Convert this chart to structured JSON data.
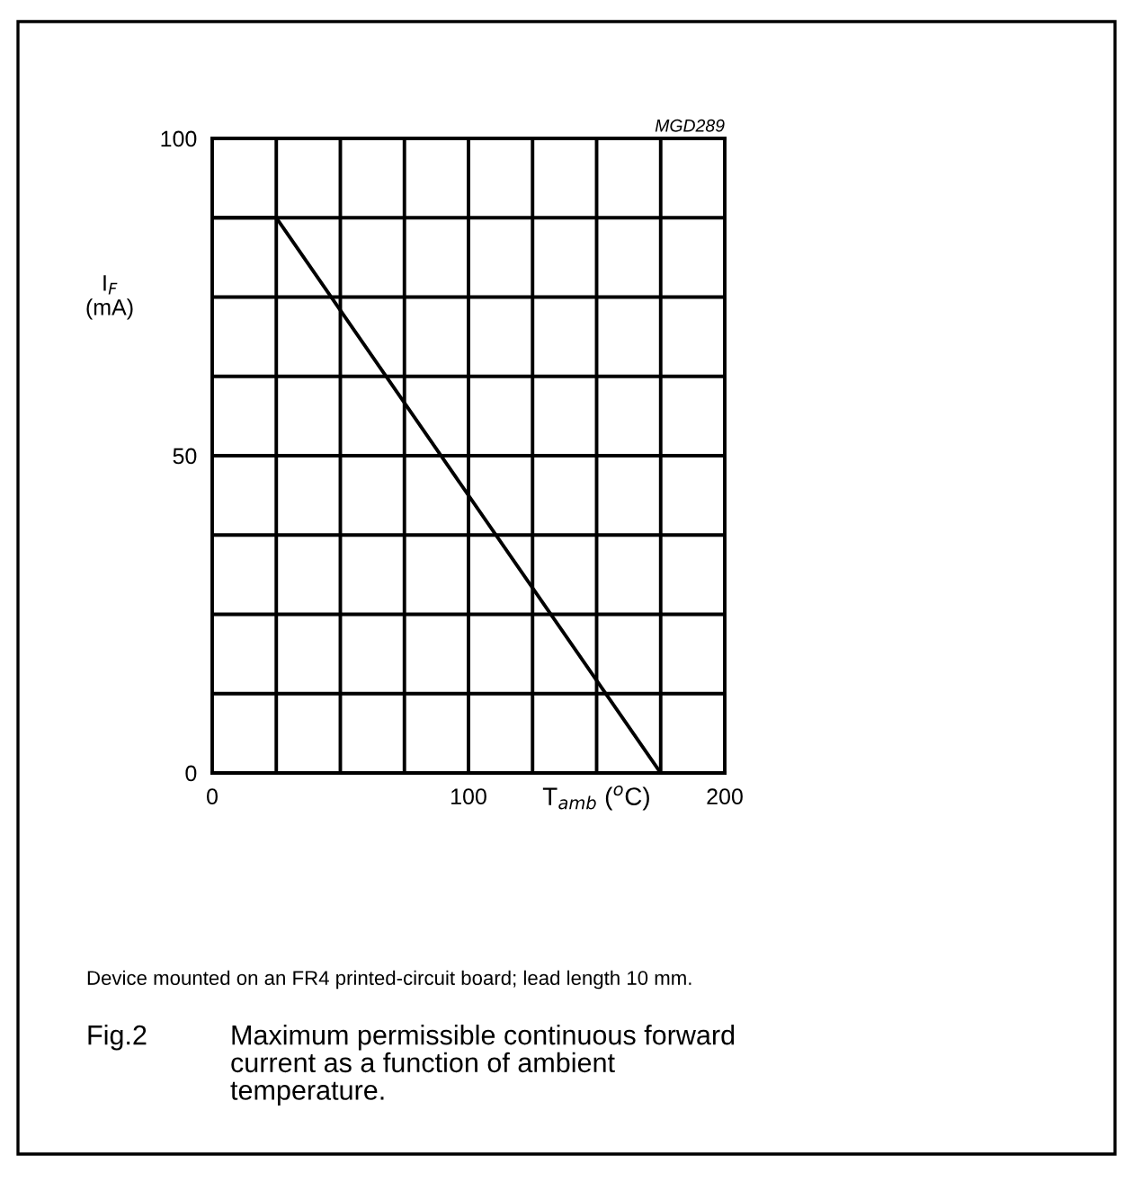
{
  "chart_data": {
    "type": "line",
    "title": "Maximum permissible continuous forward\ncurrent as a function of ambient\ntemperature.",
    "xlabel": "T$_{amb}$ ($^{o}$C)",
    "ylabel": "I$_{F}$\n(mA)",
    "x": [
      0,
      25,
      175
    ],
    "series": [
      {
        "color": "#000000",
        "values": [
          87.5,
          87.5,
          0
        ]
      }
    ],
    "xlim": [
      0,
      200
    ],
    "ylim": [
      0,
      100
    ],
    "xticks": [
      0,
      100,
      200
    ],
    "yticks": [
      0,
      50,
      100
    ],
    "grid": true,
    "marker": "none",
    "line_style": "solid",
    "annotations": [
      "MGD289",
      "Device mounted on an FR4 printed-circuit board; lead length 10 mm.",
      "Fig.2"
    ]
  }
}
